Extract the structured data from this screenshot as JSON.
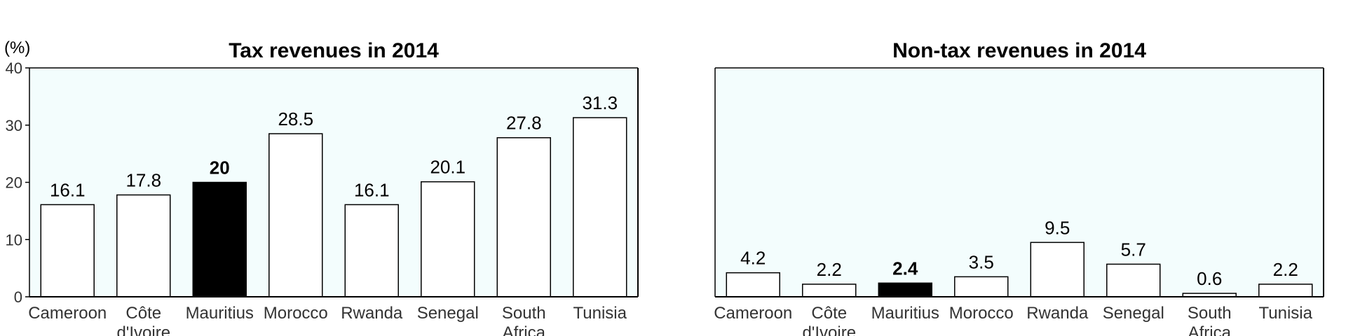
{
  "chart_data": [
    {
      "type": "bar",
      "title": "Tax revenues in 2014",
      "unit_label": "(%)",
      "categories": [
        [
          "Cameroon"
        ],
        [
          "Côte",
          "d'Ivoire"
        ],
        [
          "Mauritius"
        ],
        [
          "Morocco"
        ],
        [
          "Rwanda"
        ],
        [
          "Senegal"
        ],
        [
          "South",
          "Africa"
        ],
        [
          "Tunisia"
        ]
      ],
      "values": [
        16.1,
        17.8,
        20,
        28.5,
        16.1,
        20.1,
        27.8,
        31.3
      ],
      "value_labels": [
        "16.1",
        "17.8",
        "20",
        "28.5",
        "16.1",
        "20.1",
        "27.8",
        "31.3"
      ],
      "highlight_index": 2,
      "ylim": [
        0,
        40
      ],
      "yticks": [
        0,
        10,
        20,
        30,
        40
      ],
      "ytick_labels": [
        "0",
        "10",
        "20",
        "30",
        "40"
      ],
      "xlabel": "",
      "ylabel": "",
      "grid": false
    },
    {
      "type": "bar",
      "title": "Non-tax revenues in 2014",
      "categories": [
        [
          "Cameroon"
        ],
        [
          "Côte",
          "d'Ivoire"
        ],
        [
          "Mauritius"
        ],
        [
          "Morocco"
        ],
        [
          "Rwanda"
        ],
        [
          "Senegal"
        ],
        [
          "South",
          "Africa"
        ],
        [
          "Tunisia"
        ]
      ],
      "values": [
        4.2,
        2.2,
        2.4,
        3.5,
        9.5,
        5.7,
        0.6,
        2.2
      ],
      "value_labels": [
        "4.2",
        "2.2",
        "2.4",
        "3.5",
        "9.5",
        "5.7",
        "0.6",
        "2.2"
      ],
      "highlight_index": 2,
      "ylim": [
        0,
        40
      ],
      "xlabel": "",
      "ylabel": "",
      "grid": false
    }
  ],
  "colors": {
    "plot_background": "#f3fdfd",
    "bar_fill": "#ffffff",
    "bar_highlight": "#000000",
    "bar_edge": "#000000",
    "axis": "#000000"
  }
}
